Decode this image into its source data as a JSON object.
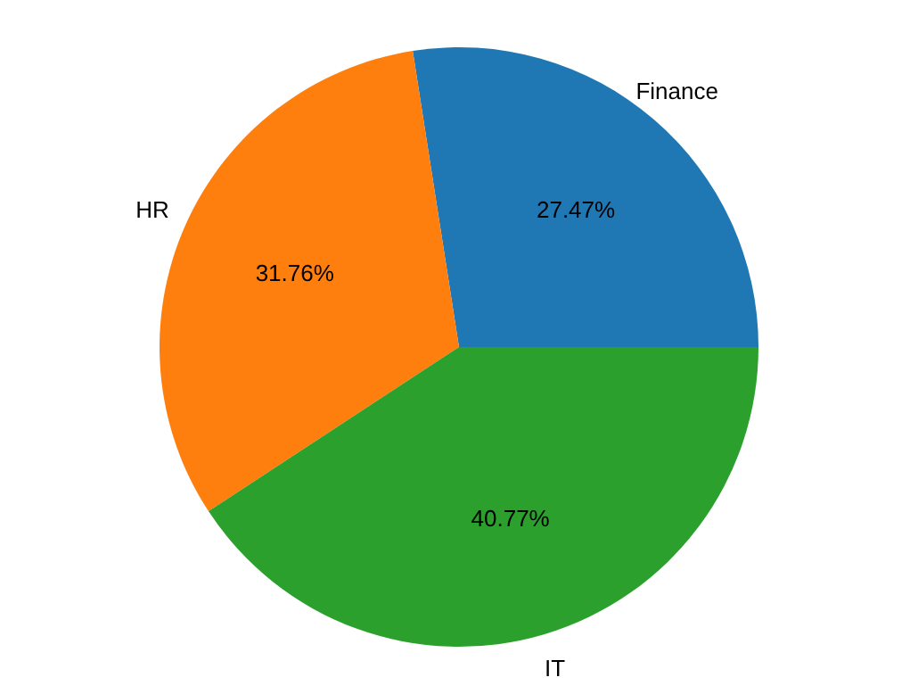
{
  "chart_data": {
    "type": "pie",
    "categories": [
      "Finance",
      "HR",
      "IT"
    ],
    "values": [
      27.47,
      31.76,
      40.77
    ],
    "colors": [
      "#1f77b4",
      "#ff7f0e",
      "#2ca02c"
    ],
    "value_labels": [
      "27.47%",
      "31.76%",
      "40.77%"
    ]
  }
}
